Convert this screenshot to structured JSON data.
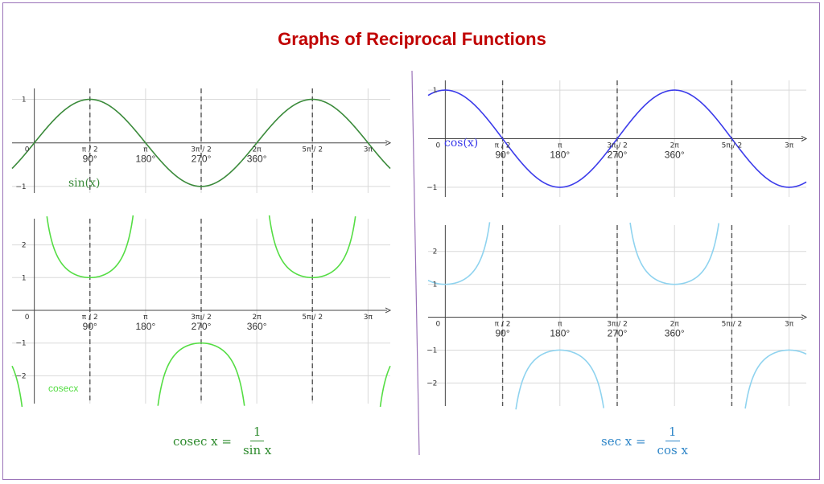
{
  "title": "Graphs of Reciprocal Functions",
  "colors": {
    "title": "#c00000",
    "sin": "#3a8a3a",
    "cosec": "#55dd44",
    "cos": "#3b3bea",
    "sec": "#8fd3ef",
    "sec_formula": "#2f86c8",
    "cosec_formula": "#2e8b2e",
    "asymptote": "#555555",
    "grid": "#d9d9d9",
    "divider": "#9a72b8"
  },
  "formulas": {
    "cosec": {
      "lhs": "cosec x =",
      "num": "1",
      "den": "sin x"
    },
    "sec": {
      "lhs": "sec x =",
      "num": "1",
      "den": "cos x"
    }
  },
  "chart_data": [
    {
      "type": "line",
      "function": "sin",
      "series": [
        {
          "name": "sin(x)"
        }
      ],
      "xlim": [
        -0.2,
        3.2
      ],
      "ylim": [
        -1.15,
        1.25
      ],
      "x_ticks": [
        {
          "value": 0.5,
          "label": "π / 2",
          "degree": "90°"
        },
        {
          "value": 1,
          "label": "π",
          "degree": "180°"
        },
        {
          "value": 1.5,
          "label": "3π / 2",
          "degree": "270°"
        },
        {
          "value": 2,
          "label": "2π",
          "degree": "360°"
        },
        {
          "value": 2.5,
          "label": "5π / 2",
          "degree": ""
        },
        {
          "value": 3,
          "label": "3π",
          "degree": ""
        }
      ],
      "y_ticks": [
        {
          "value": 1,
          "label": "1"
        },
        {
          "value": -1,
          "label": "−1"
        }
      ],
      "origin_label": "0",
      "asymptotes": [
        0.5,
        1.5,
        2.5
      ],
      "grid": true
    },
    {
      "type": "line",
      "function": "cosec",
      "series": [
        {
          "name": "cosecx"
        }
      ],
      "xlim": [
        -0.2,
        3.2
      ],
      "ylim": [
        -2.85,
        2.8
      ],
      "x_ticks": [
        {
          "value": 0.5,
          "label": "π / 2",
          "degree": "90°"
        },
        {
          "value": 1,
          "label": "π",
          "degree": "180°"
        },
        {
          "value": 1.5,
          "label": "3π / 2",
          "degree": "270°"
        },
        {
          "value": 2,
          "label": "2π",
          "degree": "360°"
        },
        {
          "value": 2.5,
          "label": "5π / 2",
          "degree": ""
        },
        {
          "value": 3,
          "label": "3π",
          "degree": ""
        }
      ],
      "y_ticks": [
        {
          "value": 2,
          "label": "2"
        },
        {
          "value": 1,
          "label": "1"
        },
        {
          "value": -1,
          "label": "−1"
        },
        {
          "value": -2,
          "label": "−2"
        }
      ],
      "origin_label": "0",
      "asymptotes": [
        0.5,
        1.5,
        2.5
      ],
      "grid": true
    },
    {
      "type": "line",
      "function": "cos",
      "series": [
        {
          "name": "cos(x)"
        }
      ],
      "xlim": [
        -0.15,
        3.15
      ],
      "ylim": [
        -1.2,
        1.2
      ],
      "x_ticks": [
        {
          "value": 0.5,
          "label": "π / 2",
          "degree": "90°"
        },
        {
          "value": 1,
          "label": "π",
          "degree": "180°"
        },
        {
          "value": 1.5,
          "label": "3π / 2",
          "degree": "270°"
        },
        {
          "value": 2,
          "label": "2π",
          "degree": "360°"
        },
        {
          "value": 2.5,
          "label": "5π / 2",
          "degree": ""
        },
        {
          "value": 3,
          "label": "3π",
          "degree": ""
        }
      ],
      "y_ticks": [
        {
          "value": 1,
          "label": "1"
        },
        {
          "value": -1,
          "label": "−1"
        }
      ],
      "origin_label": "0",
      "asymptotes": [
        0.5,
        1.5,
        2.5
      ],
      "grid": true
    },
    {
      "type": "line",
      "function": "sec",
      "series": [
        {
          "name": ""
        }
      ],
      "xlim": [
        -0.15,
        3.15
      ],
      "ylim": [
        -2.7,
        2.8
      ],
      "x_ticks": [
        {
          "value": 0.5,
          "label": "π / 2",
          "degree": "90°"
        },
        {
          "value": 1,
          "label": "π",
          "degree": "180°"
        },
        {
          "value": 1.5,
          "label": "3π / 2",
          "degree": "270°"
        },
        {
          "value": 2,
          "label": "2π",
          "degree": "360°"
        },
        {
          "value": 2.5,
          "label": "5π / 2",
          "degree": ""
        },
        {
          "value": 3,
          "label": "3π",
          "degree": ""
        }
      ],
      "y_ticks": [
        {
          "value": 2,
          "label": "2"
        },
        {
          "value": 1,
          "label": "1"
        },
        {
          "value": -1,
          "label": "−1"
        },
        {
          "value": -2,
          "label": "−2"
        }
      ],
      "origin_label": "0",
      "asymptotes": [
        0.5,
        1.5,
        2.5
      ],
      "grid": true
    }
  ]
}
